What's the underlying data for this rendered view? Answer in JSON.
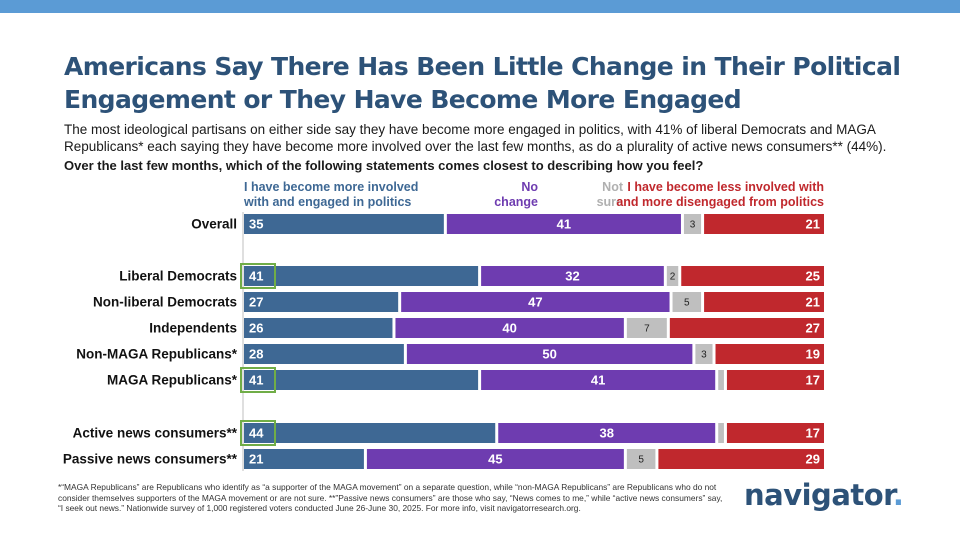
{
  "header": {
    "title": "Americans Say There Has Been Little Change in Their Political Engagement or They Have Become More Engaged",
    "subtitle": "The most ideological partisans on either side say they have become more engaged in politics, with 41% of liberal Democrats and MAGA Republicans* each saying they have become more involved over the last few months, as do a plurality of active news consumers** (44%).",
    "question": "Over the last few months, which of the following statements comes closest to describing how you feel?"
  },
  "chart_data": {
    "type": "bar",
    "orientation": "horizontal",
    "stacked": true,
    "percent_scale": true,
    "categories": [
      "Overall",
      "Liberal Democrats",
      "Non-liberal Democrats",
      "Independents",
      "Non-MAGA Republicans*",
      "MAGA Republicans*",
      "Active news consumers**",
      "Passive news consumers**"
    ],
    "groups": [
      [
        0
      ],
      [
        1,
        2,
        3,
        4,
        5
      ],
      [
        6,
        7
      ]
    ],
    "series": [
      {
        "name": "I have become more involved with and engaged in politics",
        "values": [
          35,
          41,
          27,
          26,
          28,
          41,
          44,
          21
        ],
        "color": "#3e6894"
      },
      {
        "name": "No change",
        "values": [
          41,
          32,
          47,
          40,
          50,
          41,
          38,
          45
        ],
        "color": "#6e3cb0"
      },
      {
        "name": "Not sure",
        "values": [
          3,
          2,
          5,
          7,
          3,
          1,
          1,
          5
        ],
        "color": "#bfbfbf"
      },
      {
        "name": "I have become less involved with and more disengaged from politics",
        "values": [
          21,
          25,
          21,
          27,
          19,
          17,
          17,
          29
        ],
        "color": "#c0282d"
      }
    ],
    "labels": [
      [
        "35",
        "41",
        "3",
        "21"
      ],
      [
        "41",
        "32",
        "2",
        "25"
      ],
      [
        "27",
        "47",
        "5",
        "21"
      ],
      [
        "26",
        "40",
        "7",
        "27"
      ],
      [
        "28",
        "50",
        "3",
        "19"
      ],
      [
        "41",
        "41",
        "",
        "17"
      ],
      [
        "44",
        "38",
        "",
        "17"
      ],
      [
        "21",
        "45",
        "5",
        "29"
      ]
    ],
    "highlighted": [
      1,
      5,
      6
    ],
    "highlight_color": "#70ad47"
  },
  "legend": {
    "more": [
      "I have become more involved",
      "with and engaged in politics"
    ],
    "no_change": [
      "No",
      "change"
    ],
    "not_sure": [
      "Not",
      "sure"
    ],
    "less": [
      "I have become less involved with",
      "and more disengaged from politics"
    ]
  },
  "footnote": "*“MAGA Republicans” are Republicans who identify as “a supporter of the MAGA movement” on a separate question, while “non-MAGA Republicans” are Republicans who do not consider themselves supporters of the MAGA movement or are not sure. **”Passive news consumers” are those who say, “News comes to me,” while “active news consumers” say, “I seek out news.” Nationwide survey of 1,000 registered voters conducted June 26-June 30, 2025. For more info, visit navigatorresearch.org.",
  "logo": {
    "text": "navigator",
    "dot": "."
  }
}
